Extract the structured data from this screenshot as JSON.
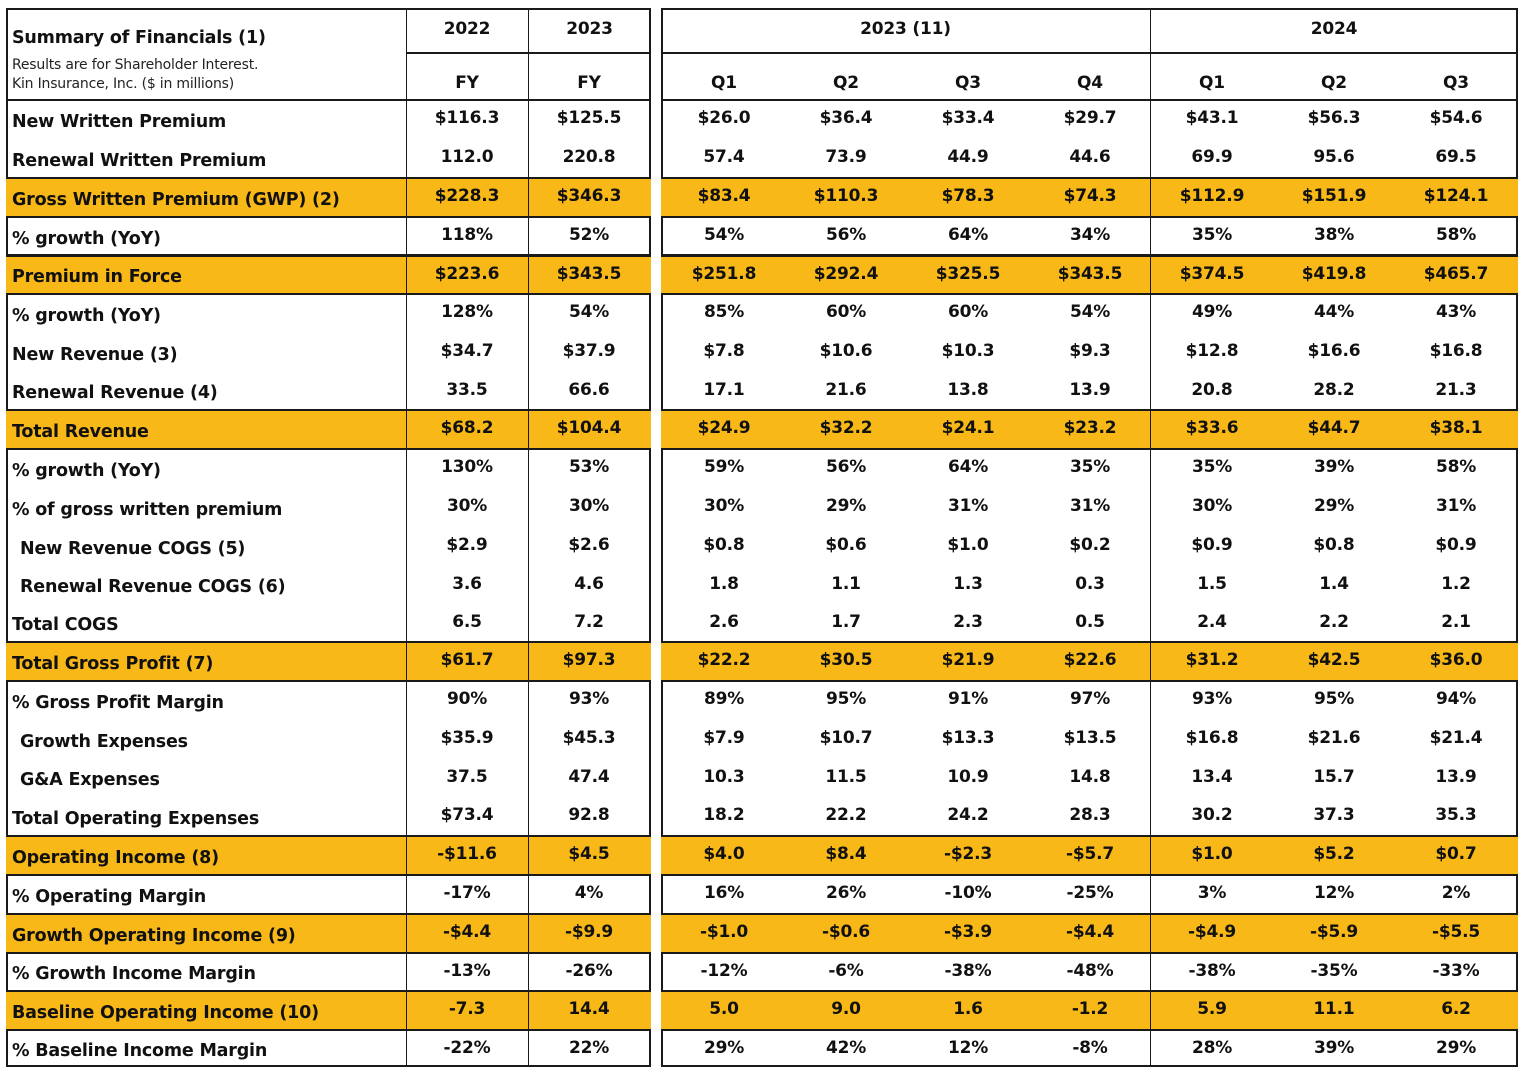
{
  "title": "Summary of Financials (1)",
  "subtitle_line1": "Results are for Shareholder Interest.",
  "subtitle_line2": "Kin Insurance, Inc.  ($ in millions)",
  "year_headers": [
    "2022",
    "2023",
    "2023 (11)",
    "2024"
  ],
  "period_headers": [
    "FY",
    "FY",
    "Q1",
    "Q2",
    "Q3",
    "Q4",
    "Q1",
    "Q2",
    "Q3"
  ],
  "highlight_color": "#f8b817",
  "rows": [
    {
      "label": "New Written Premium",
      "indent": false,
      "highlight": false,
      "values": [
        "$116.3",
        "$125.5",
        "$26.0",
        "$36.4",
        "$33.4",
        "$29.7",
        "$43.1",
        "$56.3",
        "$54.6"
      ]
    },
    {
      "label": "Renewal Written Premium",
      "indent": false,
      "highlight": false,
      "values": [
        "112.0",
        "220.8",
        "57.4",
        "73.9",
        "44.9",
        "44.6",
        "69.9",
        "95.6",
        "69.5"
      ]
    },
    {
      "label": "Gross Written Premium (GWP) (2)",
      "indent": false,
      "highlight": true,
      "values": [
        "$228.3",
        "$346.3",
        "$83.4",
        "$110.3",
        "$78.3",
        "$74.3",
        "$112.9",
        "$151.9",
        "$124.1"
      ]
    },
    {
      "label": "% growth (YoY)",
      "indent": false,
      "highlight": false,
      "values": [
        "118%",
        "52%",
        "54%",
        "56%",
        "64%",
        "34%",
        "35%",
        "38%",
        "58%"
      ]
    },
    {
      "label": "Premium in Force",
      "indent": false,
      "highlight": true,
      "values": [
        "$223.6",
        "$343.5",
        "$251.8",
        "$292.4",
        "$325.5",
        "$343.5",
        "$374.5",
        "$419.8",
        "$465.7"
      ]
    },
    {
      "label": "% growth (YoY)",
      "indent": false,
      "highlight": false,
      "values": [
        "128%",
        "54%",
        "85%",
        "60%",
        "60%",
        "54%",
        "49%",
        "44%",
        "43%"
      ]
    },
    {
      "label": "New Revenue (3)",
      "indent": false,
      "highlight": false,
      "values": [
        "$34.7",
        "$37.9",
        "$7.8",
        "$10.6",
        "$10.3",
        "$9.3",
        "$12.8",
        "$16.6",
        "$16.8"
      ]
    },
    {
      "label": "Renewal Revenue (4)",
      "indent": false,
      "highlight": false,
      "values": [
        "33.5",
        "66.6",
        "17.1",
        "21.6",
        "13.8",
        "13.9",
        "20.8",
        "28.2",
        "21.3"
      ]
    },
    {
      "label": "Total Revenue",
      "indent": false,
      "highlight": true,
      "values": [
        "$68.2",
        "$104.4",
        "$24.9",
        "$32.2",
        "$24.1",
        "$23.2",
        "$33.6",
        "$44.7",
        "$38.1"
      ]
    },
    {
      "label": "% growth (YoY)",
      "indent": false,
      "highlight": false,
      "values": [
        "130%",
        "53%",
        "59%",
        "56%",
        "64%",
        "35%",
        "35%",
        "39%",
        "58%"
      ]
    },
    {
      "label": "% of gross written premium",
      "indent": false,
      "highlight": false,
      "values": [
        "30%",
        "30%",
        "30%",
        "29%",
        "31%",
        "31%",
        "30%",
        "29%",
        "31%"
      ]
    },
    {
      "label": "New Revenue COGS (5)",
      "indent": true,
      "highlight": false,
      "values": [
        "$2.9",
        "$2.6",
        "$0.8",
        "$0.6",
        "$1.0",
        "$0.2",
        "$0.9",
        "$0.8",
        "$0.9"
      ]
    },
    {
      "label": "Renewal Revenue COGS (6)",
      "indent": true,
      "highlight": false,
      "values": [
        "3.6",
        "4.6",
        "1.8",
        "1.1",
        "1.3",
        "0.3",
        "1.5",
        "1.4",
        "1.2"
      ]
    },
    {
      "label": "Total COGS",
      "indent": false,
      "highlight": false,
      "values": [
        "6.5",
        "7.2",
        "2.6",
        "1.7",
        "2.3",
        "0.5",
        "2.4",
        "2.2",
        "2.1"
      ]
    },
    {
      "label": "Total Gross Profit (7)",
      "indent": false,
      "highlight": true,
      "values": [
        "$61.7",
        "$97.3",
        "$22.2",
        "$30.5",
        "$21.9",
        "$22.6",
        "$31.2",
        "$42.5",
        "$36.0"
      ]
    },
    {
      "label": "% Gross Profit Margin",
      "indent": false,
      "highlight": false,
      "values": [
        "90%",
        "93%",
        "89%",
        "95%",
        "91%",
        "97%",
        "93%",
        "95%",
        "94%"
      ]
    },
    {
      "label": "Growth Expenses",
      "indent": true,
      "highlight": false,
      "values": [
        "$35.9",
        "$45.3",
        "$7.9",
        "$10.7",
        "$13.3",
        "$13.5",
        "$16.8",
        "$21.6",
        "$21.4"
      ]
    },
    {
      "label": "G&A Expenses",
      "indent": true,
      "highlight": false,
      "values": [
        "37.5",
        "47.4",
        "10.3",
        "11.5",
        "10.9",
        "14.8",
        "13.4",
        "15.7",
        "13.9"
      ]
    },
    {
      "label": "Total Operating Expenses",
      "indent": false,
      "highlight": false,
      "values": [
        "$73.4",
        "92.8",
        "18.2",
        "22.2",
        "24.2",
        "28.3",
        "30.2",
        "37.3",
        "35.3"
      ]
    },
    {
      "label": "Operating Income (8)",
      "indent": false,
      "highlight": true,
      "values": [
        "-$11.6",
        "$4.5",
        "$4.0",
        "$8.4",
        "-$2.3",
        "-$5.7",
        "$1.0",
        "$5.2",
        "$0.7"
      ]
    },
    {
      "label": "% Operating Margin",
      "indent": false,
      "highlight": false,
      "values": [
        "-17%",
        "4%",
        "16%",
        "26%",
        "-10%",
        "-25%",
        "3%",
        "12%",
        "2%"
      ]
    },
    {
      "label": "Growth Operating Income (9)",
      "indent": false,
      "highlight": true,
      "values": [
        "-$4.4",
        "-$9.9",
        "-$1.0",
        "-$0.6",
        "-$3.9",
        "-$4.4",
        "-$4.9",
        "-$5.9",
        "-$5.5"
      ]
    },
    {
      "label": "% Growth Income Margin",
      "indent": false,
      "highlight": false,
      "values": [
        "-13%",
        "-26%",
        "-12%",
        "-6%",
        "-38%",
        "-48%",
        "-38%",
        "-35%",
        "-33%"
      ]
    },
    {
      "label": "Baseline Operating Income (10)",
      "indent": false,
      "highlight": true,
      "values": [
        "-7.3",
        "14.4",
        "5.0",
        "9.0",
        "1.6",
        "-1.2",
        "5.9",
        "11.1",
        "6.2"
      ]
    },
    {
      "label": "% Baseline Income Margin",
      "indent": false,
      "highlight": false,
      "values": [
        "-22%",
        "22%",
        "29%",
        "42%",
        "12%",
        "-8%",
        "28%",
        "39%",
        "29%"
      ]
    }
  ]
}
